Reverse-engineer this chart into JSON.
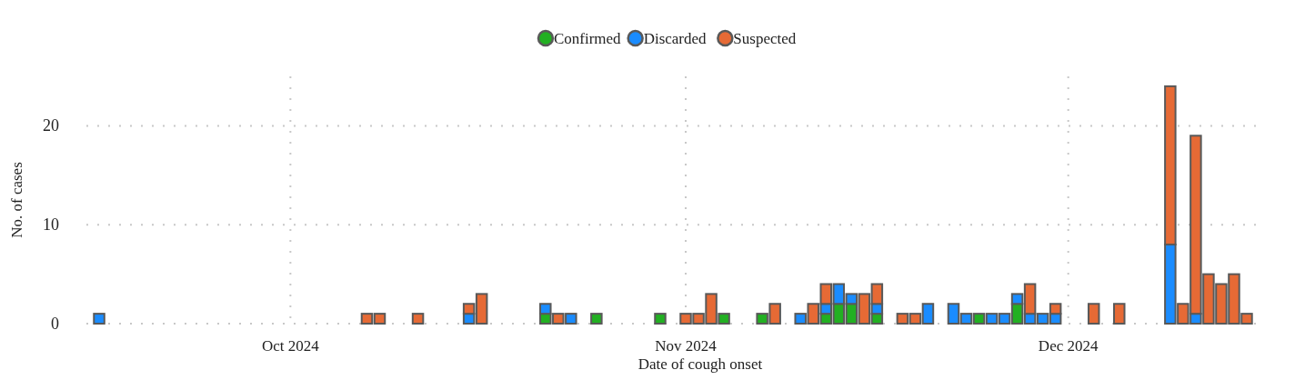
{
  "chart_data": {
    "type": "bar",
    "stacked": true,
    "xlabel": "Date of cough onset",
    "ylabel": "No. of cases",
    "x": [
      "2024-09-16",
      "2024-10-07",
      "2024-10-08",
      "2024-10-11",
      "2024-10-15",
      "2024-10-16",
      "2024-10-21",
      "2024-10-22",
      "2024-10-23",
      "2024-10-25",
      "2024-10-30",
      "2024-11-01",
      "2024-11-02",
      "2024-11-03",
      "2024-11-04",
      "2024-11-07",
      "2024-11-08",
      "2024-11-10",
      "2024-11-11",
      "2024-11-12",
      "2024-11-13",
      "2024-11-14",
      "2024-11-15",
      "2024-11-16",
      "2024-11-18",
      "2024-11-19",
      "2024-11-20",
      "2024-11-22",
      "2024-11-23",
      "2024-11-24",
      "2024-11-25",
      "2024-11-26",
      "2024-11-27",
      "2024-11-28",
      "2024-11-29",
      "2024-11-30",
      "2024-12-03",
      "2024-12-05",
      "2024-12-09",
      "2024-12-10",
      "2024-12-11",
      "2024-12-12",
      "2024-12-13",
      "2024-12-14",
      "2024-12-15"
    ],
    "series": [
      {
        "name": "Confirmed",
        "color": "#22b022",
        "values": [
          null,
          null,
          null,
          null,
          null,
          null,
          1,
          null,
          null,
          1,
          1,
          null,
          null,
          null,
          1,
          1,
          null,
          null,
          null,
          1,
          2,
          2,
          null,
          1,
          null,
          null,
          null,
          null,
          null,
          1,
          null,
          null,
          2,
          null,
          null,
          null,
          null,
          null,
          null,
          null,
          null,
          null,
          null,
          null,
          null
        ]
      },
      {
        "name": "Discarded",
        "color": "#1a8cff",
        "values": [
          1,
          null,
          null,
          null,
          1,
          null,
          1,
          null,
          1,
          null,
          null,
          null,
          null,
          null,
          null,
          null,
          null,
          1,
          null,
          1,
          2,
          1,
          null,
          1,
          null,
          null,
          2,
          2,
          1,
          null,
          1,
          1,
          1,
          1,
          1,
          1,
          null,
          null,
          8,
          null,
          1,
          null,
          null,
          null,
          null
        ]
      },
      {
        "name": "Suspected",
        "color": "#e66a35",
        "values": [
          null,
          1,
          1,
          1,
          1,
          3,
          null,
          1,
          null,
          null,
          null,
          1,
          1,
          3,
          null,
          null,
          2,
          null,
          2,
          2,
          null,
          null,
          3,
          2,
          1,
          1,
          null,
          null,
          null,
          null,
          null,
          null,
          null,
          3,
          null,
          1,
          2,
          2,
          16,
          2,
          18,
          5,
          4,
          5,
          1
        ]
      }
    ],
    "xlim": [
      "2024-09-15",
      "2024-12-16"
    ],
    "xticks": [
      {
        "value": "2024-10-01",
        "label": "Oct 2024"
      },
      {
        "value": "2024-11-01",
        "label": "Nov 2024"
      },
      {
        "value": "2024-12-01",
        "label": "Dec 2024"
      }
    ],
    "ylim": [
      0,
      25
    ],
    "yticks": [
      0,
      10,
      20
    ],
    "grid": true,
    "legend": "top"
  }
}
